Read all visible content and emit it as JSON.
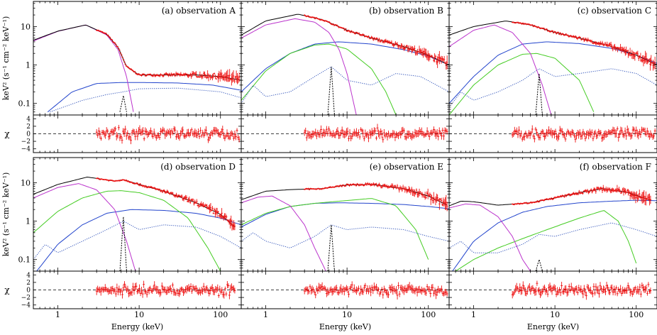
{
  "figure": {
    "x_axis_label": "Energy (keV)",
    "spec_ylabel": "keV² (s⁻¹ cm⁻² keV⁻¹)",
    "resid_ylabel": "χ"
  },
  "colors": {
    "data": "#ee1111",
    "total": "#000000",
    "disk": "#bb33cc",
    "powerlaw": "#2244cc",
    "comptonization": "#44cc22",
    "reflection_dotted": "#3355bb",
    "line_dashed": "#000000"
  },
  "chart_data": [
    {
      "type": "line",
      "panel": "A",
      "title": "(a) observation A",
      "x_scale": "log",
      "y_scale": "log",
      "xlim": [
        0.5,
        180
      ],
      "ylim": [
        0.05,
        45
      ],
      "xticks": [
        "1",
        "10",
        "100"
      ],
      "yticks": [
        "0.1",
        "1",
        "10"
      ],
      "components": {
        "disk": {
          "x": [
            0.5,
            1,
            2.2,
            4,
            5.5,
            7,
            8.5
          ],
          "y": [
            4.2,
            7.5,
            11,
            6,
            2.5,
            0.5,
            0.06
          ]
        },
        "powerlaw": {
          "x": [
            0.75,
            1.5,
            3,
            6,
            10,
            30,
            80,
            180
          ],
          "y": [
            0.06,
            0.2,
            0.33,
            0.35,
            0.35,
            0.34,
            0.3,
            0.22
          ]
        },
        "reflection_dotted": {
          "x": [
            0.8,
            2,
            4,
            6.4,
            10,
            30,
            100,
            180
          ],
          "y": [
            0.06,
            0.12,
            0.17,
            0.2,
            0.24,
            0.25,
            0.2,
            0.14
          ]
        },
        "iron_line": {
          "x": [
            5.8,
            6.4,
            7
          ],
          "y": [
            0.06,
            0.16,
            0.06
          ]
        },
        "total": {
          "x": [
            0.5,
            1,
            2.2,
            4,
            5.5,
            7,
            10,
            20,
            50,
            100,
            180
          ],
          "y": [
            4.4,
            7.6,
            11,
            6.3,
            2.9,
            0.9,
            0.55,
            0.55,
            0.55,
            0.5,
            0.4
          ]
        },
        "data_range": [
          3,
          170
        ]
      },
      "residuals": {
        "ylim": [
          -5,
          5
        ],
        "yticks": [
          "4",
          "2",
          "0",
          "−2",
          "−4"
        ],
        "data_range": [
          3,
          170
        ]
      }
    },
    {
      "type": "line",
      "panel": "B",
      "title": "(b) observation B",
      "x_scale": "log",
      "y_scale": "log",
      "xlim": [
        0.5,
        180
      ],
      "ylim": [
        0.05,
        45
      ],
      "xticks": [
        "1",
        "10",
        "100"
      ],
      "yticks": [
        "0.1",
        "1",
        "10"
      ],
      "components": {
        "disk": {
          "x": [
            0.5,
            1,
            2.3,
            4,
            6,
            8,
            10,
            13
          ],
          "y": [
            5,
            11,
            16,
            13,
            7,
            2.5,
            0.6,
            0.05
          ]
        },
        "powerlaw": {
          "x": [
            0.5,
            1,
            2,
            4,
            8,
            20,
            50,
            100,
            180
          ],
          "y": [
            0.2,
            0.8,
            2,
            3.5,
            4,
            3.5,
            2.5,
            1.7,
            1
          ]
        },
        "comptonization": {
          "x": [
            0.5,
            1,
            2,
            4,
            6,
            10,
            20,
            30,
            40
          ],
          "y": [
            0.12,
            0.7,
            2,
            3.3,
            3.5,
            2.6,
            0.8,
            0.2,
            0.05
          ]
        },
        "reflection_dotted": {
          "x": [
            0.5,
            0.7,
            1,
            2,
            4,
            6.4,
            10,
            20,
            40,
            80,
            180
          ],
          "y": [
            0.1,
            0.3,
            0.15,
            0.2,
            0.5,
            0.9,
            0.4,
            0.3,
            0.6,
            0.5,
            0.2
          ]
        },
        "iron_line": {
          "x": [
            5.8,
            6.4,
            7
          ],
          "y": [
            0.05,
            0.9,
            0.05
          ]
        },
        "total": {
          "x": [
            0.5,
            1,
            2.5,
            5,
            10,
            20,
            50,
            100,
            180
          ],
          "y": [
            6,
            14,
            21,
            15,
            8,
            5,
            3,
            1.8,
            1
          ]
        },
        "data_range": [
          3,
          170
        ]
      },
      "residuals": {
        "ylim": [
          -5,
          5
        ],
        "yticks": [
          "4",
          "2",
          "0",
          "−2",
          "−4"
        ],
        "data_range": [
          3,
          170
        ]
      }
    },
    {
      "type": "line",
      "panel": "C",
      "title": "(c) observation C",
      "x_scale": "log",
      "y_scale": "log",
      "xlim": [
        0.5,
        180
      ],
      "ylim": [
        0.05,
        45
      ],
      "xticks": [
        "1",
        "10",
        "100"
      ],
      "yticks": [
        "0.1",
        "1",
        "10"
      ],
      "components": {
        "disk": {
          "x": [
            0.5,
            1,
            1.8,
            3,
            5,
            7,
            9
          ],
          "y": [
            3,
            8,
            11,
            7,
            2,
            0.3,
            0.05
          ]
        },
        "powerlaw": {
          "x": [
            0.5,
            1,
            2,
            4,
            8,
            20,
            50,
            100,
            180
          ],
          "y": [
            0.1,
            0.5,
            1.8,
            3.5,
            4,
            3.6,
            2.7,
            1.8,
            1.1
          ]
        },
        "comptonization": {
          "x": [
            0.5,
            1,
            2,
            4,
            6,
            10,
            20,
            30
          ],
          "y": [
            0.05,
            0.3,
            1,
            1.9,
            2,
            1.5,
            0.4,
            0.06
          ]
        },
        "reflection_dotted": {
          "x": [
            0.5,
            0.7,
            1,
            2,
            4,
            6.4,
            10,
            20,
            50,
            100,
            180
          ],
          "y": [
            0.08,
            0.2,
            0.12,
            0.2,
            0.4,
            0.8,
            0.5,
            0.6,
            0.8,
            0.6,
            0.3
          ]
        },
        "iron_line": {
          "x": [
            5.8,
            6.4,
            7
          ],
          "y": [
            0.05,
            0.6,
            0.05
          ]
        },
        "total": {
          "x": [
            0.5,
            1,
            2.5,
            5,
            10,
            20,
            50,
            100,
            180
          ],
          "y": [
            6,
            10,
            14,
            11,
            7,
            5,
            3,
            1.8,
            1
          ]
        },
        "data_range": [
          3,
          170
        ]
      },
      "residuals": {
        "ylim": [
          -5,
          5
        ],
        "yticks": [
          "4",
          "2",
          "0",
          "−2",
          "−4"
        ],
        "data_range": [
          3,
          170
        ]
      }
    },
    {
      "type": "line",
      "panel": "D",
      "title": "(d) observation D",
      "x_scale": "log",
      "y_scale": "log",
      "xlim": [
        0.5,
        180
      ],
      "ylim": [
        0.05,
        45
      ],
      "xticks": [
        "1",
        "10",
        "100"
      ],
      "yticks": [
        "0.1",
        "1",
        "10"
      ],
      "components": {
        "disk": {
          "x": [
            0.5,
            1,
            1.8,
            3,
            5,
            7,
            9
          ],
          "y": [
            4,
            7.5,
            9.5,
            6.5,
            2,
            0.3,
            0.05
          ]
        },
        "powerlaw": {
          "x": [
            0.55,
            1,
            2,
            4,
            8,
            20,
            50,
            100,
            180
          ],
          "y": [
            0.05,
            0.25,
            0.8,
            1.6,
            2,
            1.9,
            1.6,
            1.2,
            0.8
          ]
        },
        "comptonization": {
          "x": [
            0.5,
            1,
            2,
            4,
            6,
            10,
            20,
            40,
            70,
            100
          ],
          "y": [
            0.5,
            1.8,
            4,
            6,
            6.2,
            5.5,
            3.5,
            1.2,
            0.2,
            0.05
          ]
        },
        "reflection_dotted": {
          "x": [
            0.5,
            0.7,
            1,
            2,
            4,
            6.4,
            10,
            20,
            50,
            100,
            180
          ],
          "y": [
            0.1,
            0.25,
            0.15,
            0.3,
            0.6,
            1,
            0.6,
            0.8,
            0.7,
            0.4,
            0.2
          ]
        },
        "iron_line": {
          "x": [
            5.8,
            6.4,
            7
          ],
          "y": [
            0.05,
            1.3,
            0.05
          ]
        },
        "total": {
          "x": [
            0.5,
            1,
            2.3,
            5,
            6.4,
            10,
            20,
            50,
            100,
            150
          ],
          "y": [
            5,
            9,
            14,
            11,
            12,
            9,
            6,
            3,
            1.5,
            0.7
          ]
        },
        "data_range": [
          3,
          150
        ]
      },
      "residuals": {
        "ylim": [
          -5,
          5
        ],
        "yticks": [
          "4",
          "2",
          "0",
          "−2",
          "−4"
        ],
        "data_range": [
          3,
          150
        ]
      }
    },
    {
      "type": "line",
      "panel": "E",
      "title": "(e) observation E",
      "x_scale": "log",
      "y_scale": "log",
      "xlim": [
        0.5,
        180
      ],
      "ylim": [
        0.05,
        45
      ],
      "xticks": [
        "1",
        "10",
        "100"
      ],
      "yticks": [
        "0.1",
        "1",
        "10"
      ],
      "components": {
        "disk": {
          "x": [
            0.5,
            0.8,
            1.2,
            2,
            3,
            4,
            5.5
          ],
          "y": [
            3,
            4.2,
            4.5,
            2.5,
            0.8,
            0.2,
            0.05
          ]
        },
        "powerlaw": {
          "x": [
            0.5,
            1,
            2,
            4,
            8,
            20,
            50,
            100,
            180
          ],
          "y": [
            0.7,
            1.5,
            2.4,
            2.9,
            3,
            2.9,
            2.7,
            2.4,
            2.1
          ]
        },
        "comptonization": {
          "x": [
            0.5,
            1,
            2,
            4,
            8,
            20,
            40,
            70,
            100
          ],
          "y": [
            0.8,
            1.6,
            2.4,
            2.9,
            3.3,
            3.9,
            2.5,
            0.6,
            0.1
          ]
        },
        "reflection_dotted": {
          "x": [
            0.5,
            0.7,
            1,
            2,
            4,
            6.4,
            10,
            20,
            50,
            100,
            180
          ],
          "y": [
            0.3,
            0.5,
            0.3,
            0.2,
            0.4,
            0.8,
            0.6,
            0.7,
            0.6,
            0.4,
            0.3
          ]
        },
        "iron_line": {
          "x": [
            5.8,
            6.4,
            7
          ],
          "y": [
            0.05,
            0.8,
            0.05
          ]
        },
        "total": {
          "x": [
            0.5,
            1,
            2,
            5,
            10,
            20,
            50,
            100,
            170
          ],
          "y": [
            3.6,
            6,
            6.6,
            7,
            8.7,
            9,
            7,
            4.5,
            2.6
          ]
        },
        "data_range": [
          3,
          170
        ]
      },
      "residuals": {
        "ylim": [
          -5,
          5
        ],
        "yticks": [
          "4",
          "2",
          "0",
          "−2",
          "−4"
        ],
        "data_range": [
          3,
          170
        ]
      }
    },
    {
      "type": "line",
      "panel": "F",
      "title": "(f) observation F",
      "x_scale": "log",
      "y_scale": "log",
      "xlim": [
        0.5,
        180
      ],
      "ylim": [
        0.05,
        45
      ],
      "xticks": [
        "1",
        "10",
        "100"
      ],
      "yticks": [
        "0.1",
        "1",
        "10"
      ],
      "components": {
        "disk": {
          "x": [
            0.5,
            0.8,
            1.2,
            2,
            3,
            4,
            5
          ],
          "y": [
            2.2,
            2.8,
            2.6,
            1.3,
            0.4,
            0.1,
            0.05
          ]
        },
        "powerlaw": {
          "x": [
            0.55,
            1,
            2,
            4,
            8,
            20,
            50,
            100,
            180
          ],
          "y": [
            0.05,
            0.3,
            0.9,
            1.7,
            2.4,
            3,
            3.3,
            3.5,
            3.4
          ]
        },
        "comptonization": {
          "x": [
            0.6,
            1,
            2,
            4,
            8,
            20,
            40,
            60,
            80,
            100
          ],
          "y": [
            0.05,
            0.1,
            0.2,
            0.35,
            0.6,
            1.2,
            1.9,
            1,
            0.3,
            0.08
          ]
        },
        "reflection_dotted": {
          "x": [
            0.5,
            0.7,
            1,
            2,
            4,
            6.4,
            10,
            20,
            50,
            100,
            180
          ],
          "y": [
            0.2,
            0.3,
            0.15,
            0.15,
            0.25,
            0.45,
            0.4,
            0.6,
            0.9,
            0.6,
            0.4
          ]
        },
        "iron_line": {
          "x": [
            5.8,
            6.4,
            7
          ],
          "y": [
            0.05,
            0.1,
            0.05
          ]
        },
        "total": {
          "x": [
            0.5,
            0.7,
            1,
            2,
            5,
            10,
            20,
            40,
            80,
            150
          ],
          "y": [
            2.5,
            3.3,
            3.2,
            2.6,
            3,
            4,
            5.5,
            7,
            5.5,
            3.5
          ]
        },
        "data_range": [
          3,
          150
        ]
      },
      "residuals": {
        "ylim": [
          -5,
          5
        ],
        "yticks": [
          "4",
          "2",
          "0",
          "−2",
          "−4"
        ],
        "data_range": [
          3,
          150
        ]
      }
    }
  ]
}
